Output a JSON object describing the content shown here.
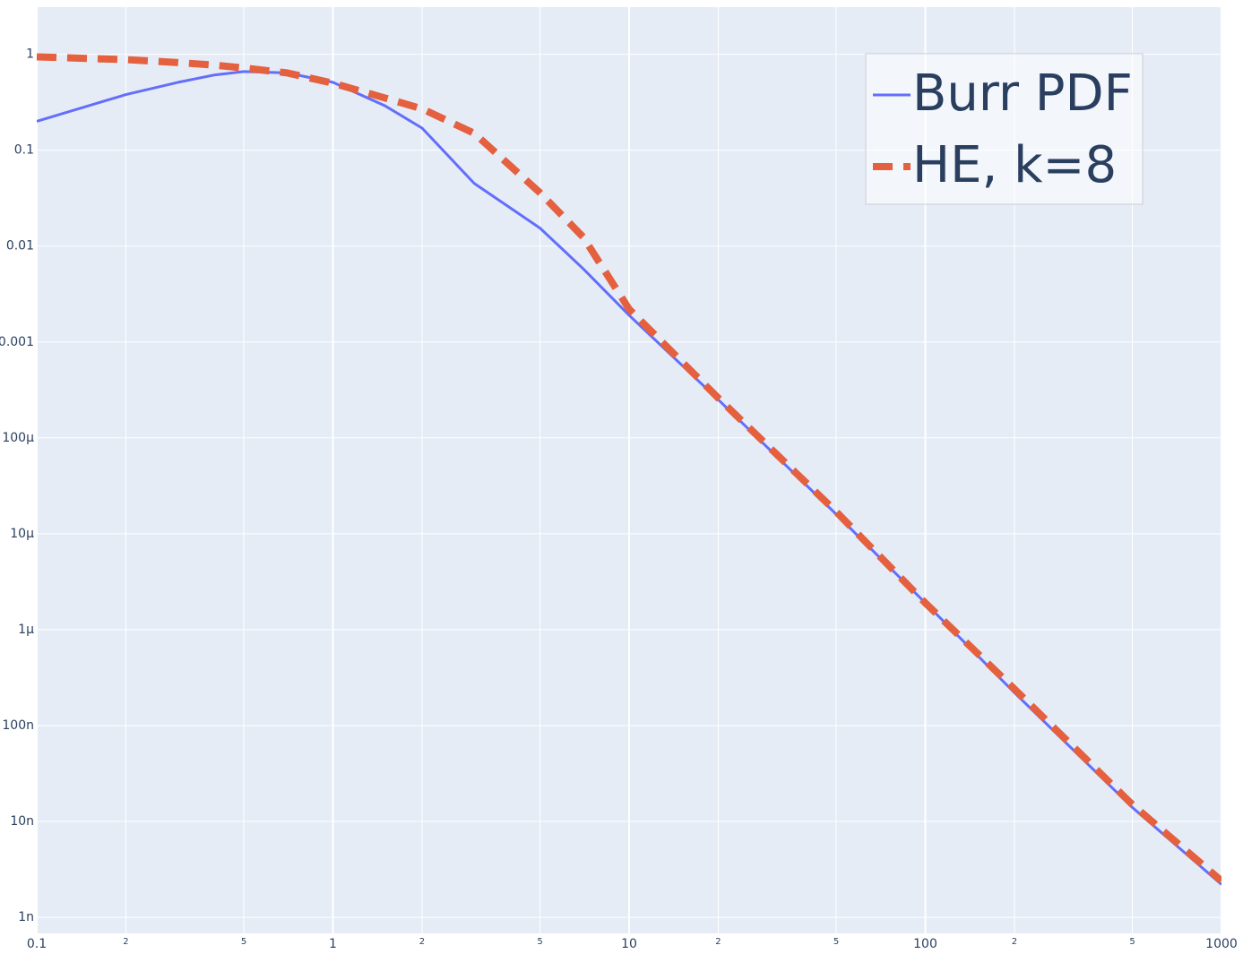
{
  "chart_data": {
    "type": "line",
    "x": [
      0.1,
      0.2,
      0.3,
      0.4,
      0.5,
      0.7,
      1,
      1.5,
      2,
      3,
      5,
      7,
      10,
      20,
      50,
      100,
      200,
      500,
      1000
    ],
    "series": [
      {
        "name": "Burr PDF",
        "color": "#636efa",
        "dash": false,
        "values": [
          0.2,
          0.38,
          0.51,
          0.61,
          0.66,
          0.64,
          0.51,
          0.29,
          0.17,
          0.045,
          0.0154,
          0.0058,
          0.0019,
          0.00025,
          1.6e-05,
          1.9e-06,
          2.2e-07,
          1.4e-08,
          2.2e-09
        ]
      },
      {
        "name": "HE, k=8",
        "color": "#e4603f",
        "dash": true,
        "values": [
          0.94,
          0.88,
          0.82,
          0.77,
          0.72,
          0.64,
          0.5,
          0.35,
          0.27,
          0.15,
          0.036,
          0.0124,
          0.0022,
          0.00026,
          1.7e-05,
          1.9e-06,
          2.4e-07,
          1.5e-08,
          2.4e-09
        ]
      }
    ],
    "xlog": true,
    "ylog": true,
    "xlim": [
      0.1,
      1000
    ],
    "ylim": [
      6.8e-10,
      3.1
    ],
    "xticks": [
      0.1,
      {
        "value": 0.2,
        "label": "2"
      },
      {
        "value": 0.5,
        "label": "5"
      },
      1,
      {
        "value": 2,
        "label": "2"
      },
      {
        "value": 5,
        "label": "5"
      },
      10,
      {
        "value": 20,
        "label": "2"
      },
      {
        "value": 50,
        "label": "5"
      },
      100,
      {
        "value": 200,
        "label": "2"
      },
      {
        "value": 500,
        "label": "5"
      },
      1000
    ],
    "yticks": [
      {
        "value": 1e-09,
        "label": "1n"
      },
      {
        "value": 1e-08,
        "label": "10n"
      },
      {
        "value": 1e-07,
        "label": "100n"
      },
      {
        "value": 1e-06,
        "label": "1μ"
      },
      {
        "value": 1e-05,
        "label": "10μ"
      },
      {
        "value": 0.0001,
        "label": "100μ"
      },
      0.001,
      0.01,
      0.1,
      1
    ],
    "grid": true,
    "legend": "top right"
  }
}
